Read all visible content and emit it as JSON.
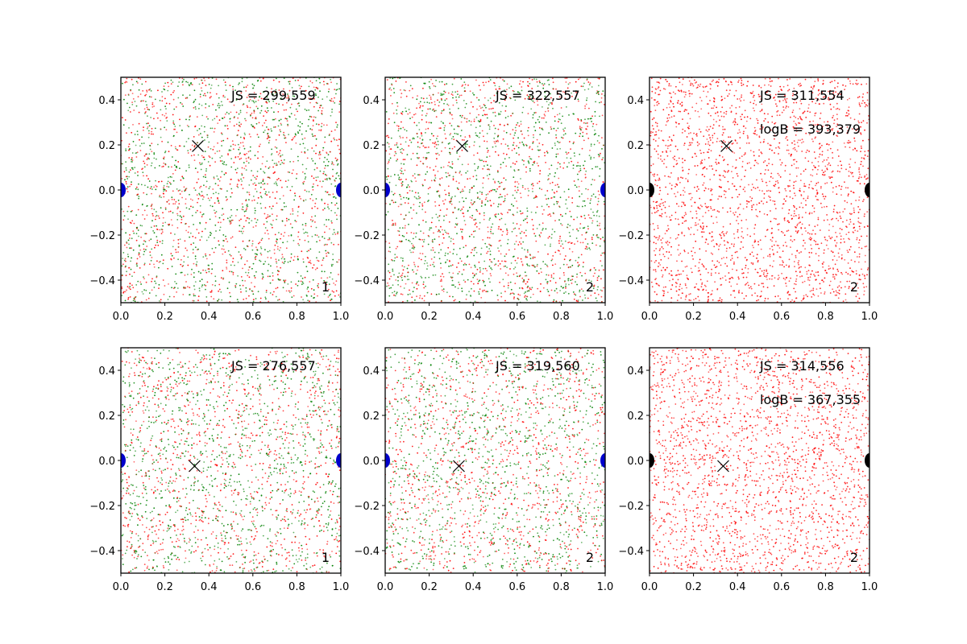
{
  "chart_data": [
    {
      "type": "scatter",
      "row": 0,
      "col": 0,
      "xlim": [
        0.0,
        1.0
      ],
      "ylim": [
        -0.5,
        0.5
      ],
      "xticks": [
        "0.0",
        "0.2",
        "0.4",
        "0.6",
        "0.8",
        "1.0"
      ],
      "yticks": [
        "−0.4",
        "−0.2",
        "0.0",
        "0.2",
        "0.4"
      ],
      "scatter_colors": [
        "#ff0000",
        "#008000"
      ],
      "endpoint_color": "#0000cc",
      "endpoints": [
        [
          0.0,
          0.0
        ],
        [
          1.0,
          0.0
        ]
      ],
      "marker": [
        0.35,
        0.195
      ],
      "annotations": [
        "JS = 299,559"
      ],
      "panel_label": "1",
      "seed": 11
    },
    {
      "type": "scatter",
      "row": 0,
      "col": 1,
      "xlim": [
        0.0,
        1.0
      ],
      "ylim": [
        -0.5,
        0.5
      ],
      "xticks": [
        "0.0",
        "0.2",
        "0.4",
        "0.6",
        "0.8",
        "1.0"
      ],
      "yticks": [
        "−0.4",
        "−0.2",
        "0.0",
        "0.2",
        "0.4"
      ],
      "scatter_colors": [
        "#ff0000",
        "#008000"
      ],
      "endpoint_color": "#0000cc",
      "endpoints": [
        [
          0.0,
          0.0
        ],
        [
          1.0,
          0.0
        ]
      ],
      "marker": [
        0.35,
        0.195
      ],
      "annotations": [
        "JS = 322,557"
      ],
      "panel_label": "2",
      "seed": 23
    },
    {
      "type": "scatter",
      "row": 0,
      "col": 2,
      "xlim": [
        0.0,
        1.0
      ],
      "ylim": [
        -0.5,
        0.5
      ],
      "xticks": [
        "0.0",
        "0.2",
        "0.4",
        "0.6",
        "0.8",
        "1.0"
      ],
      "yticks": [
        "−0.4",
        "−0.2",
        "0.0",
        "0.2",
        "0.4"
      ],
      "scatter_colors": [
        "#ff0000"
      ],
      "endpoint_color": "#000000",
      "endpoints": [
        [
          0.0,
          0.0
        ],
        [
          1.0,
          0.0
        ]
      ],
      "marker": [
        0.35,
        0.195
      ],
      "annotations": [
        "JS = 311,554",
        "logB = 393,379"
      ],
      "panel_label": "2",
      "seed": 37
    },
    {
      "type": "scatter",
      "row": 1,
      "col": 0,
      "xlim": [
        0.0,
        1.0
      ],
      "ylim": [
        -0.5,
        0.5
      ],
      "xticks": [
        "0.0",
        "0.2",
        "0.4",
        "0.6",
        "0.8",
        "1.0"
      ],
      "yticks": [
        "−0.4",
        "−0.2",
        "0.0",
        "0.2",
        "0.4"
      ],
      "scatter_colors": [
        "#ff0000",
        "#008000"
      ],
      "endpoint_color": "#0000cc",
      "endpoints": [
        [
          0.0,
          0.0
        ],
        [
          1.0,
          0.0
        ]
      ],
      "marker": [
        0.335,
        -0.025
      ],
      "annotations": [
        "JS = 276,557"
      ],
      "panel_label": "1",
      "seed": 41
    },
    {
      "type": "scatter",
      "row": 1,
      "col": 1,
      "xlim": [
        0.0,
        1.0
      ],
      "ylim": [
        -0.5,
        0.5
      ],
      "xticks": [
        "0.0",
        "0.2",
        "0.4",
        "0.6",
        "0.8",
        "1.0"
      ],
      "yticks": [
        "−0.4",
        "−0.2",
        "0.0",
        "0.2",
        "0.4"
      ],
      "scatter_colors": [
        "#ff0000",
        "#008000"
      ],
      "endpoint_color": "#0000cc",
      "endpoints": [
        [
          0.0,
          0.0
        ],
        [
          1.0,
          0.0
        ]
      ],
      "marker": [
        0.335,
        -0.025
      ],
      "annotations": [
        "JS = 319,560"
      ],
      "panel_label": "2",
      "seed": 53
    },
    {
      "type": "scatter",
      "row": 1,
      "col": 2,
      "xlim": [
        0.0,
        1.0
      ],
      "ylim": [
        -0.5,
        0.5
      ],
      "xticks": [
        "0.0",
        "0.2",
        "0.4",
        "0.6",
        "0.8",
        "1.0"
      ],
      "yticks": [
        "−0.4",
        "−0.2",
        "0.0",
        "0.2",
        "0.4"
      ],
      "scatter_colors": [
        "#ff0000"
      ],
      "endpoint_color": "#000000",
      "endpoints": [
        [
          0.0,
          0.0
        ],
        [
          1.0,
          0.0
        ]
      ],
      "marker": [
        0.335,
        -0.025
      ],
      "annotations": [
        "JS = 314,556",
        "logB = 367,355"
      ],
      "panel_label": "2",
      "seed": 67
    }
  ]
}
